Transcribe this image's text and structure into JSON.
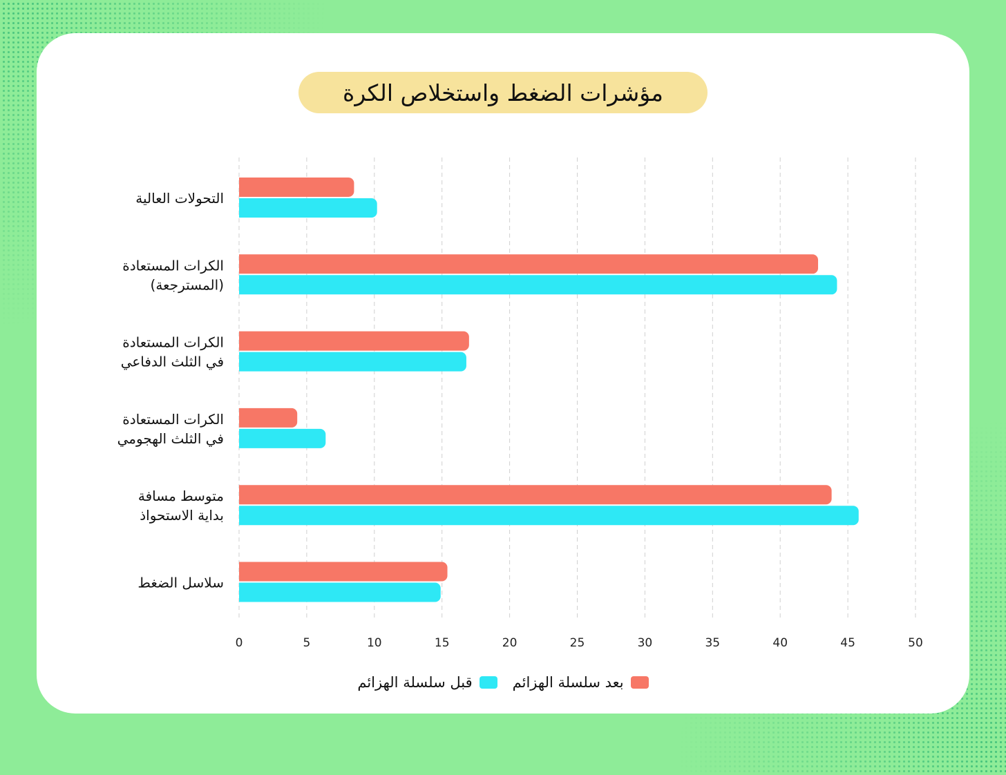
{
  "chart_data": {
    "type": "bar",
    "orientation": "horizontal",
    "title": "مؤشرات الضغط واستخلاص الكرة",
    "categories": [
      [
        "التحولات العالية"
      ],
      [
        "الكرات المستعادة",
        "(المسترجعة)"
      ],
      [
        "الكرات المستعادة",
        "في الثلث الدفاعي"
      ],
      [
        "الكرات المستعادة",
        "في الثلث الهجومي"
      ],
      [
        "متوسط مسافة",
        "بداية الاستحواذ"
      ],
      [
        "سلاسل الضغط"
      ]
    ],
    "series": [
      {
        "name": "بعد سلسلة الهزائم",
        "color": "#f77766",
        "values": [
          8.5,
          42.8,
          17.0,
          4.3,
          43.8,
          15.4
        ]
      },
      {
        "name": "قبل سلسلة الهزائم",
        "color": "#2ee8f5",
        "values": [
          10.2,
          44.2,
          16.8,
          6.4,
          45.8,
          14.9
        ]
      }
    ],
    "xlim": [
      0,
      50
    ],
    "xticks": [
      "0",
      "5",
      "10",
      "15",
      "20",
      "25",
      "30",
      "35",
      "40",
      "45",
      "50"
    ],
    "grid": true,
    "legend_position": "bottom"
  }
}
